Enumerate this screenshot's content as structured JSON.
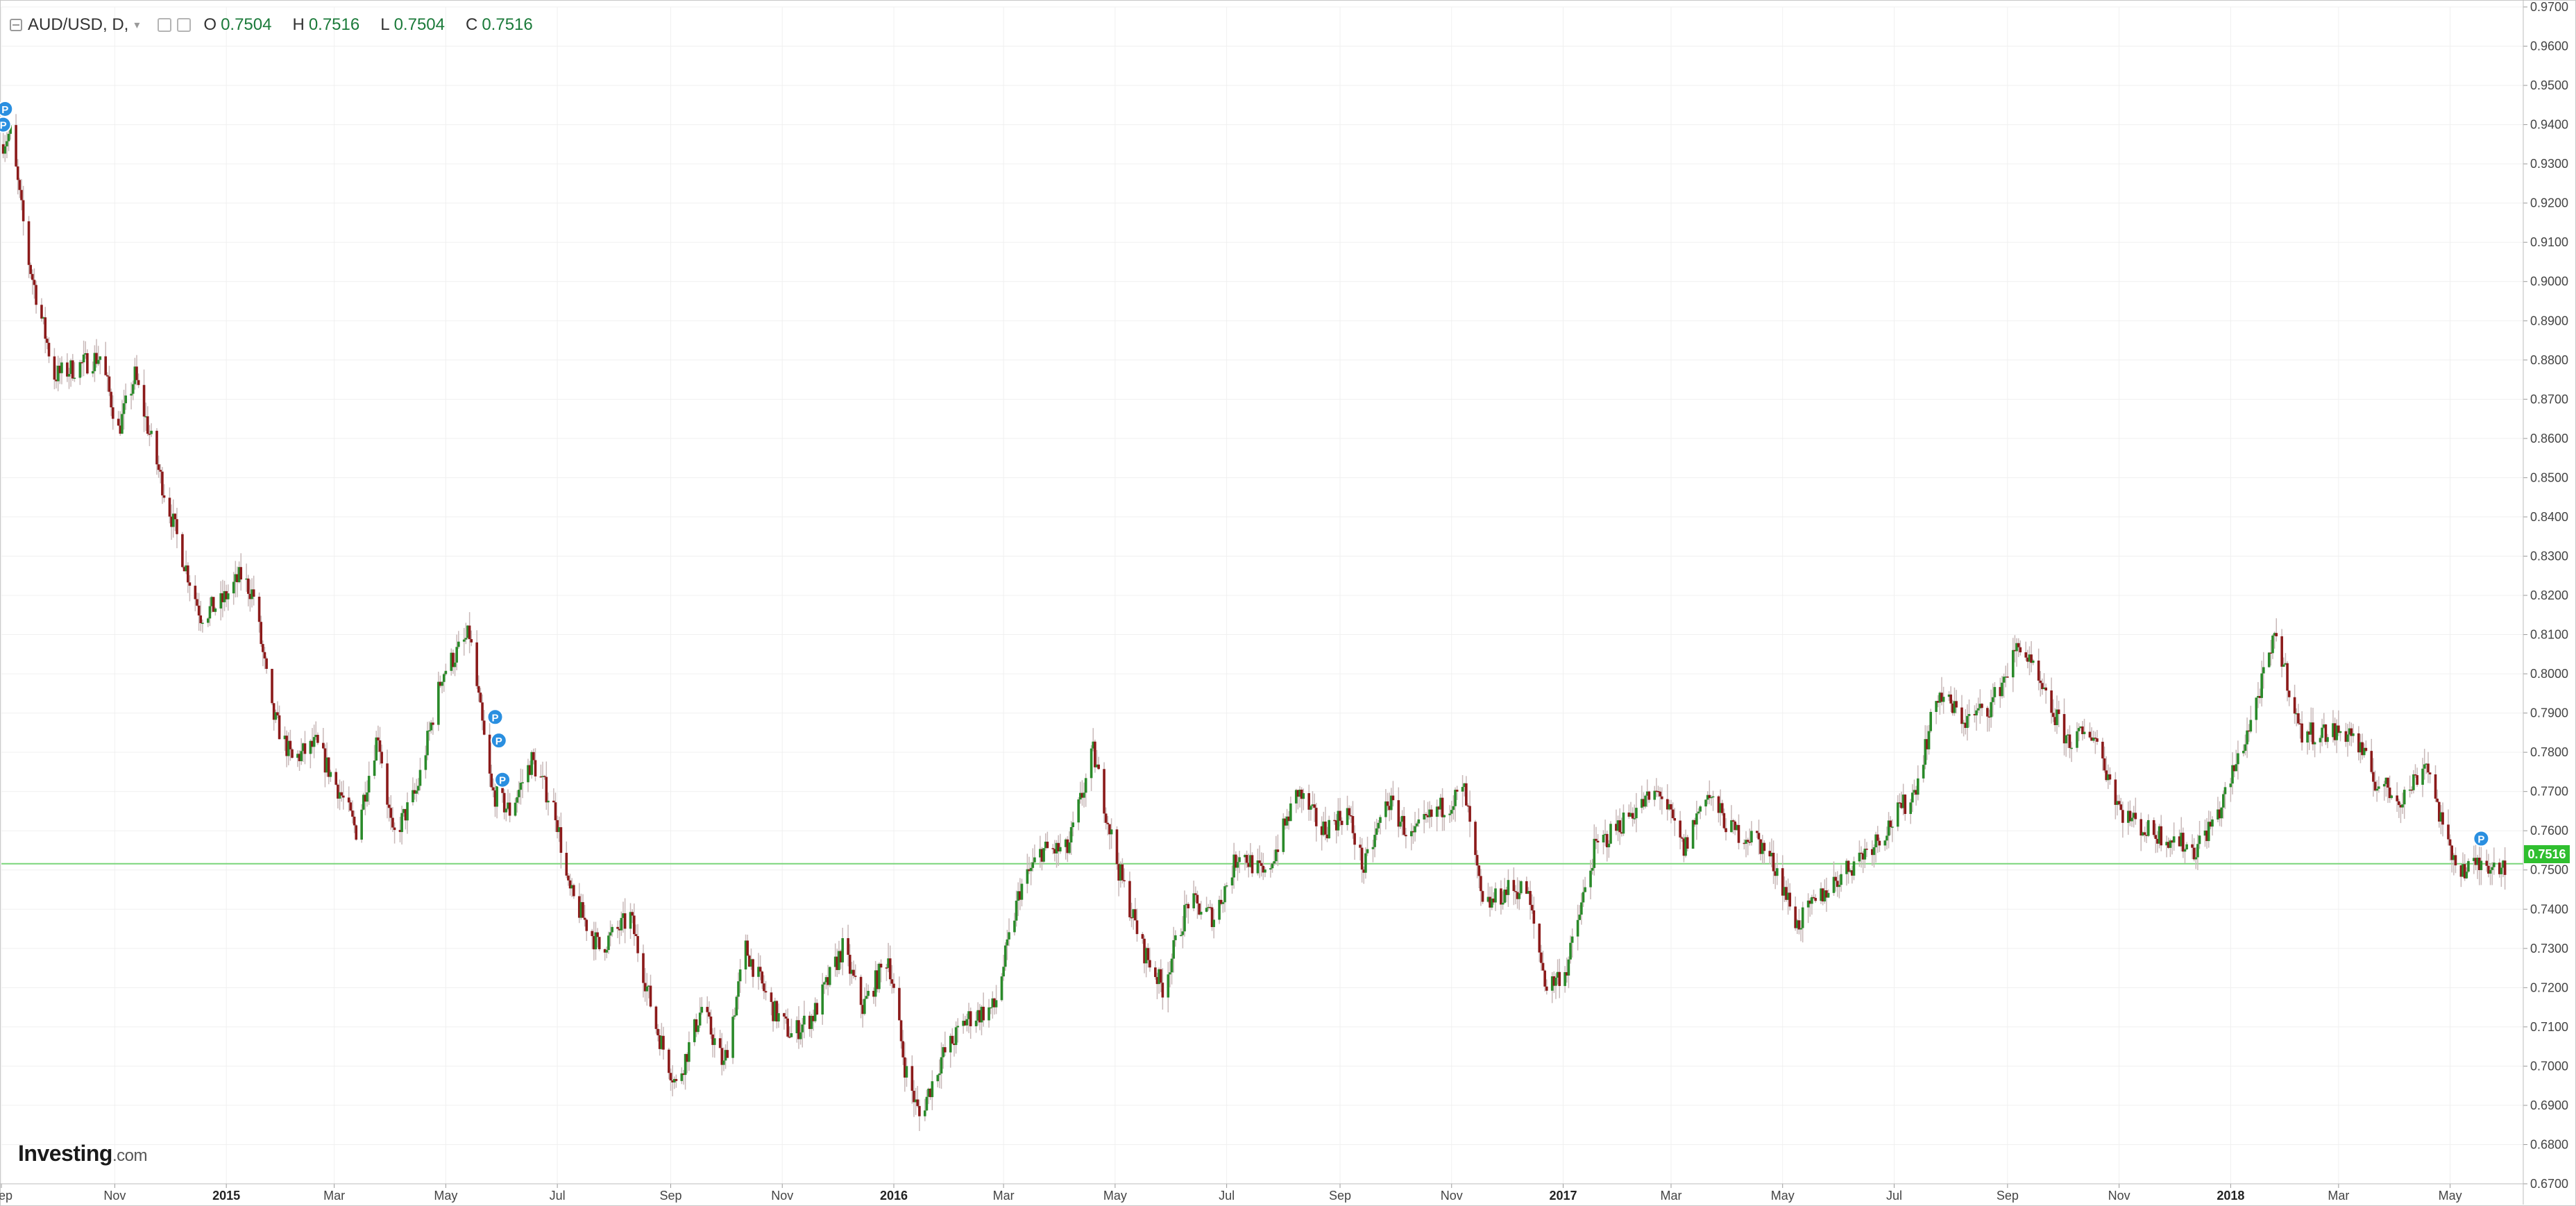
{
  "header": {
    "symbol": "AUD/USD, D,",
    "dropdown_caret": "▾",
    "ohlc": {
      "open_label": "O",
      "open": "0.7504",
      "high_label": "H",
      "high": "0.7516",
      "low_label": "L",
      "low": "0.7504",
      "close_label": "C",
      "close": "0.7516"
    }
  },
  "logo": {
    "brand": "Investing",
    "suffix": ".com"
  },
  "last_price_label": "0.7516",
  "colors": {
    "up": "#2a8a2a",
    "down": "#8b1a1a",
    "wick": "#c8b8b8",
    "last_price_line": "#7ad67a",
    "last_price_tag": "#2fbf2f",
    "marker": "#2a8fe0",
    "grid": "#f0f0f0"
  },
  "icons": [
    "collapse-icon",
    "settings-square-icon",
    "eye-square-icon",
    "p-marker-icon"
  ],
  "chart_data": {
    "type": "candlestick",
    "title": "AUD/USD, D,",
    "y_range": [
      0.67,
      0.97
    ],
    "y_ticks": [
      "0.9700",
      "0.9600",
      "0.9500",
      "0.9400",
      "0.9300",
      "0.9200",
      "0.9100",
      "0.9000",
      "0.8900",
      "0.8800",
      "0.8700",
      "0.8600",
      "0.8500",
      "0.8400",
      "0.8300",
      "0.8200",
      "0.8100",
      "0.8000",
      "0.7900",
      "0.7800",
      "0.7700",
      "0.7600",
      "0.7500",
      "0.7400",
      "0.7300",
      "0.7200",
      "0.7100",
      "0.7000",
      "0.6900",
      "0.6800",
      "0.6700"
    ],
    "x_ticks": [
      {
        "label": "Sep",
        "date": "2014-08-31",
        "bold": false
      },
      {
        "label": "Nov",
        "date": "2014-11-01",
        "bold": false
      },
      {
        "label": "2015",
        "date": "2015-01-01",
        "bold": true
      },
      {
        "label": "Mar",
        "date": "2015-03-01",
        "bold": false
      },
      {
        "label": "May",
        "date": "2015-05-01",
        "bold": false
      },
      {
        "label": "Jul",
        "date": "2015-07-01",
        "bold": false
      },
      {
        "label": "Sep",
        "date": "2015-09-01",
        "bold": false
      },
      {
        "label": "Nov",
        "date": "2015-11-01",
        "bold": false
      },
      {
        "label": "2016",
        "date": "2016-01-01",
        "bold": true
      },
      {
        "label": "Mar",
        "date": "2016-03-01",
        "bold": false
      },
      {
        "label": "May",
        "date": "2016-05-01",
        "bold": false
      },
      {
        "label": "Jul",
        "date": "2016-07-01",
        "bold": false
      },
      {
        "label": "Sep",
        "date": "2016-09-01",
        "bold": false
      },
      {
        "label": "Nov",
        "date": "2016-11-01",
        "bold": false
      },
      {
        "label": "2017",
        "date": "2017-01-01",
        "bold": true
      },
      {
        "label": "Mar",
        "date": "2017-03-01",
        "bold": false
      },
      {
        "label": "May",
        "date": "2017-05-01",
        "bold": false
      },
      {
        "label": "Jul",
        "date": "2017-07-01",
        "bold": false
      },
      {
        "label": "Sep",
        "date": "2017-09-01",
        "bold": false
      },
      {
        "label": "Nov",
        "date": "2017-11-01",
        "bold": false
      },
      {
        "label": "2018",
        "date": "2018-01-01",
        "bold": true
      },
      {
        "label": "Mar",
        "date": "2018-03-01",
        "bold": false
      },
      {
        "label": "May",
        "date": "2018-05-01",
        "bold": false
      }
    ],
    "x_range": [
      "2014-08-31",
      "2018-06-10"
    ],
    "close_path": [
      {
        "date": "2014-08-31",
        "close": 0.935
      },
      {
        "date": "2014-09-05",
        "close": 0.938
      },
      {
        "date": "2014-09-15",
        "close": 0.905
      },
      {
        "date": "2014-09-29",
        "close": 0.876
      },
      {
        "date": "2014-10-10",
        "close": 0.878
      },
      {
        "date": "2014-10-24",
        "close": 0.881
      },
      {
        "date": "2014-11-03",
        "close": 0.862
      },
      {
        "date": "2014-11-12",
        "close": 0.876
      },
      {
        "date": "2014-11-26",
        "close": 0.85
      },
      {
        "date": "2014-12-08",
        "close": 0.83
      },
      {
        "date": "2014-12-18",
        "close": 0.815
      },
      {
        "date": "2014-12-29",
        "close": 0.818
      },
      {
        "date": "2015-01-09",
        "close": 0.825
      },
      {
        "date": "2015-01-16",
        "close": 0.82
      },
      {
        "date": "2015-01-26",
        "close": 0.79
      },
      {
        "date": "2015-02-06",
        "close": 0.778
      },
      {
        "date": "2015-02-19",
        "close": 0.782
      },
      {
        "date": "2015-03-04",
        "close": 0.77
      },
      {
        "date": "2015-03-13",
        "close": 0.76
      },
      {
        "date": "2015-03-25",
        "close": 0.785
      },
      {
        "date": "2015-04-02",
        "close": 0.758
      },
      {
        "date": "2015-04-15",
        "close": 0.77
      },
      {
        "date": "2015-04-29",
        "close": 0.8
      },
      {
        "date": "2015-05-14",
        "close": 0.81
      },
      {
        "date": "2015-05-26",
        "close": 0.77
      },
      {
        "date": "2015-06-05",
        "close": 0.765
      },
      {
        "date": "2015-06-17",
        "close": 0.778
      },
      {
        "date": "2015-06-30",
        "close": 0.765
      },
      {
        "date": "2015-07-07",
        "close": 0.745
      },
      {
        "date": "2015-07-24",
        "close": 0.73
      },
      {
        "date": "2015-08-10",
        "close": 0.738
      },
      {
        "date": "2015-08-24",
        "close": 0.71
      },
      {
        "date": "2015-09-04",
        "close": 0.695
      },
      {
        "date": "2015-09-18",
        "close": 0.715
      },
      {
        "date": "2015-09-30",
        "close": 0.7
      },
      {
        "date": "2015-10-12",
        "close": 0.73
      },
      {
        "date": "2015-10-26",
        "close": 0.715
      },
      {
        "date": "2015-11-06",
        "close": 0.708
      },
      {
        "date": "2015-11-18",
        "close": 0.713
      },
      {
        "date": "2015-12-04",
        "close": 0.73
      },
      {
        "date": "2015-12-15",
        "close": 0.715
      },
      {
        "date": "2015-12-29",
        "close": 0.728
      },
      {
        "date": "2016-01-07",
        "close": 0.7
      },
      {
        "date": "2016-01-15",
        "close": 0.687
      },
      {
        "date": "2016-01-27",
        "close": 0.702
      },
      {
        "date": "2016-02-10",
        "close": 0.712
      },
      {
        "date": "2016-02-25",
        "close": 0.715
      },
      {
        "date": "2016-03-10",
        "close": 0.745
      },
      {
        "date": "2016-03-22",
        "close": 0.755
      },
      {
        "date": "2016-04-05",
        "close": 0.755
      },
      {
        "date": "2016-04-19",
        "close": 0.78
      },
      {
        "date": "2016-05-03",
        "close": 0.75
      },
      {
        "date": "2016-05-16",
        "close": 0.73
      },
      {
        "date": "2016-05-27",
        "close": 0.72
      },
      {
        "date": "2016-06-10",
        "close": 0.742
      },
      {
        "date": "2016-06-24",
        "close": 0.738
      },
      {
        "date": "2016-07-08",
        "close": 0.755
      },
      {
        "date": "2016-07-22",
        "close": 0.748
      },
      {
        "date": "2016-08-09",
        "close": 0.77
      },
      {
        "date": "2016-08-22",
        "close": 0.76
      },
      {
        "date": "2016-09-05",
        "close": 0.765
      },
      {
        "date": "2016-09-14",
        "close": 0.75
      },
      {
        "date": "2016-09-27",
        "close": 0.768
      },
      {
        "date": "2016-10-10",
        "close": 0.758
      },
      {
        "date": "2016-10-24",
        "close": 0.765
      },
      {
        "date": "2016-11-08",
        "close": 0.77
      },
      {
        "date": "2016-11-18",
        "close": 0.74
      },
      {
        "date": "2016-12-02",
        "close": 0.745
      },
      {
        "date": "2016-12-12",
        "close": 0.745
      },
      {
        "date": "2016-12-23",
        "close": 0.72
      },
      {
        "date": "2017-01-03",
        "close": 0.725
      },
      {
        "date": "2017-01-18",
        "close": 0.755
      },
      {
        "date": "2017-02-08",
        "close": 0.765
      },
      {
        "date": "2017-02-23",
        "close": 0.77
      },
      {
        "date": "2017-03-08",
        "close": 0.755
      },
      {
        "date": "2017-03-20",
        "close": 0.77
      },
      {
        "date": "2017-04-03",
        "close": 0.76
      },
      {
        "date": "2017-04-17",
        "close": 0.758
      },
      {
        "date": "2017-04-28",
        "close": 0.75
      },
      {
        "date": "2017-05-09",
        "close": 0.736
      },
      {
        "date": "2017-05-25",
        "close": 0.745
      },
      {
        "date": "2017-06-09",
        "close": 0.752
      },
      {
        "date": "2017-06-26",
        "close": 0.76
      },
      {
        "date": "2017-07-12",
        "close": 0.77
      },
      {
        "date": "2017-07-25",
        "close": 0.795
      },
      {
        "date": "2017-08-09",
        "close": 0.788
      },
      {
        "date": "2017-08-23",
        "close": 0.792
      },
      {
        "date": "2017-09-08",
        "close": 0.808
      },
      {
        "date": "2017-09-20",
        "close": 0.795
      },
      {
        "date": "2017-10-04",
        "close": 0.783
      },
      {
        "date": "2017-10-18",
        "close": 0.785
      },
      {
        "date": "2017-11-02",
        "close": 0.765
      },
      {
        "date": "2017-11-16",
        "close": 0.76
      },
      {
        "date": "2017-12-01",
        "close": 0.758
      },
      {
        "date": "2017-12-12",
        "close": 0.755
      },
      {
        "date": "2017-12-26",
        "close": 0.765
      },
      {
        "date": "2018-01-10",
        "close": 0.785
      },
      {
        "date": "2018-01-26",
        "close": 0.81
      },
      {
        "date": "2018-02-08",
        "close": 0.785
      },
      {
        "date": "2018-02-22",
        "close": 0.785
      },
      {
        "date": "2018-03-08",
        "close": 0.785
      },
      {
        "date": "2018-03-22",
        "close": 0.772
      },
      {
        "date": "2018-04-05",
        "close": 0.768
      },
      {
        "date": "2018-04-18",
        "close": 0.778
      },
      {
        "date": "2018-04-30",
        "close": 0.755
      },
      {
        "date": "2018-05-09",
        "close": 0.75
      },
      {
        "date": "2018-05-21",
        "close": 0.752
      },
      {
        "date": "2018-06-01",
        "close": 0.7516
      }
    ],
    "markers": [
      {
        "date": "2014-09-02",
        "price": 0.944,
        "label": "P"
      },
      {
        "date": "2014-09-01",
        "price": 0.94,
        "label": "P"
      },
      {
        "date": "2015-05-28",
        "price": 0.789,
        "label": "P"
      },
      {
        "date": "2015-05-30",
        "price": 0.783,
        "label": "P"
      },
      {
        "date": "2015-06-01",
        "price": 0.773,
        "label": "P"
      },
      {
        "date": "2018-05-18",
        "price": 0.758,
        "label": "P"
      }
    ],
    "last_price": 0.7516,
    "grid": true
  }
}
